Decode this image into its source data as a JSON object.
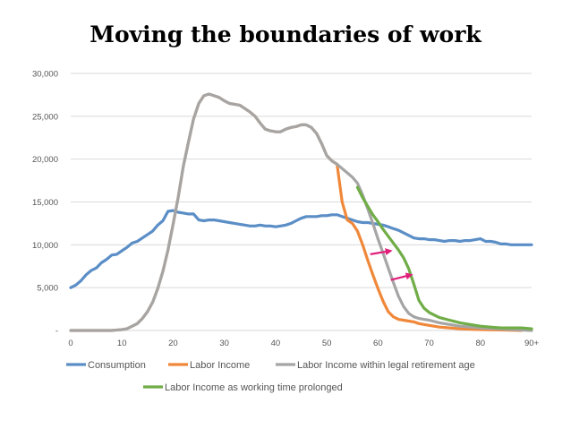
{
  "chart_data": {
    "type": "line",
    "title": "Moving the boundaries of work",
    "xlabel": "",
    "ylabel": "",
    "xlim": [
      0,
      90
    ],
    "ylim": [
      0,
      30000
    ],
    "x_ticks": [
      "0",
      "10",
      "20",
      "30",
      "40",
      "50",
      "60",
      "70",
      "80",
      "90+"
    ],
    "y_ticks": [
      "-",
      "5,000",
      "10,000",
      "15,000",
      "20,000",
      "25,000",
      "30,000"
    ],
    "grid": "horizontal",
    "legend_position": "bottom",
    "series": [
      {
        "name": "Consumption",
        "color": "#5b8ec6",
        "points": [
          [
            0,
            5000
          ],
          [
            1,
            5300
          ],
          [
            2,
            5800
          ],
          [
            3,
            6500
          ],
          [
            4,
            7000
          ],
          [
            5,
            7300
          ],
          [
            6,
            7900
          ],
          [
            7,
            8300
          ],
          [
            8,
            8800
          ],
          [
            9,
            8900
          ],
          [
            10,
            9300
          ],
          [
            11,
            9700
          ],
          [
            12,
            10200
          ],
          [
            13,
            10400
          ],
          [
            14,
            10800
          ],
          [
            15,
            11200
          ],
          [
            16,
            11600
          ],
          [
            17,
            12300
          ],
          [
            18,
            12800
          ],
          [
            19,
            13900
          ],
          [
            20,
            14000
          ],
          [
            21,
            13800
          ],
          [
            22,
            13700
          ],
          [
            23,
            13600
          ],
          [
            24,
            13600
          ],
          [
            25,
            12900
          ],
          [
            26,
            12800
          ],
          [
            27,
            12900
          ],
          [
            28,
            12900
          ],
          [
            29,
            12800
          ],
          [
            30,
            12700
          ],
          [
            31,
            12600
          ],
          [
            32,
            12500
          ],
          [
            33,
            12400
          ],
          [
            34,
            12300
          ],
          [
            35,
            12200
          ],
          [
            36,
            12200
          ],
          [
            37,
            12300
          ],
          [
            38,
            12200
          ],
          [
            39,
            12200
          ],
          [
            40,
            12100
          ],
          [
            41,
            12200
          ],
          [
            42,
            12300
          ],
          [
            43,
            12500
          ],
          [
            44,
            12800
          ],
          [
            45,
            13100
          ],
          [
            46,
            13300
          ],
          [
            47,
            13300
          ],
          [
            48,
            13300
          ],
          [
            49,
            13400
          ],
          [
            50,
            13400
          ],
          [
            51,
            13500
          ],
          [
            52,
            13500
          ],
          [
            53,
            13300
          ],
          [
            54,
            13100
          ],
          [
            55,
            12900
          ],
          [
            56,
            12700
          ],
          [
            57,
            12600
          ],
          [
            58,
            12600
          ],
          [
            59,
            12500
          ],
          [
            60,
            12400
          ],
          [
            61,
            12300
          ],
          [
            62,
            12100
          ],
          [
            63,
            11900
          ],
          [
            64,
            11700
          ],
          [
            65,
            11400
          ],
          [
            66,
            11100
          ],
          [
            67,
            10800
          ],
          [
            68,
            10700
          ],
          [
            69,
            10700
          ],
          [
            70,
            10600
          ],
          [
            71,
            10600
          ],
          [
            72,
            10500
          ],
          [
            73,
            10400
          ],
          [
            74,
            10500
          ],
          [
            75,
            10500
          ],
          [
            76,
            10400
          ],
          [
            77,
            10500
          ],
          [
            78,
            10500
          ],
          [
            79,
            10600
          ],
          [
            80,
            10700
          ],
          [
            81,
            10400
          ],
          [
            82,
            10400
          ],
          [
            83,
            10300
          ],
          [
            84,
            10100
          ],
          [
            85,
            10100
          ],
          [
            86,
            10000
          ],
          [
            87,
            10000
          ],
          [
            88,
            10000
          ],
          [
            89,
            10000
          ],
          [
            90,
            10000
          ]
        ]
      },
      {
        "name": "Labor Income",
        "color": "#f0883a",
        "points": [
          [
            0,
            0
          ],
          [
            5,
            0
          ],
          [
            8,
            0
          ],
          [
            10,
            100
          ],
          [
            11,
            200
          ],
          [
            12,
            500
          ],
          [
            13,
            800
          ],
          [
            14,
            1400
          ],
          [
            15,
            2200
          ],
          [
            16,
            3300
          ],
          [
            17,
            4900
          ],
          [
            18,
            6900
          ],
          [
            19,
            9400
          ],
          [
            20,
            12400
          ],
          [
            21,
            15600
          ],
          [
            22,
            19200
          ],
          [
            23,
            22000
          ],
          [
            24,
            24700
          ],
          [
            25,
            26500
          ],
          [
            26,
            27400
          ],
          [
            27,
            27600
          ],
          [
            28,
            27400
          ],
          [
            29,
            27200
          ],
          [
            30,
            26800
          ],
          [
            31,
            26500
          ],
          [
            32,
            26400
          ],
          [
            33,
            26300
          ],
          [
            34,
            25900
          ],
          [
            35,
            25500
          ],
          [
            36,
            25000
          ],
          [
            37,
            24200
          ],
          [
            38,
            23500
          ],
          [
            39,
            23300
          ],
          [
            40,
            23200
          ],
          [
            41,
            23200
          ],
          [
            42,
            23500
          ],
          [
            43,
            23700
          ],
          [
            44,
            23800
          ],
          [
            45,
            24000
          ],
          [
            46,
            24000
          ],
          [
            47,
            23700
          ],
          [
            48,
            23000
          ],
          [
            49,
            21800
          ],
          [
            50,
            20400
          ],
          [
            51,
            19800
          ],
          [
            52,
            19400
          ],
          [
            53,
            15000
          ],
          [
            54,
            12900
          ],
          [
            55,
            12500
          ],
          [
            56,
            11600
          ],
          [
            57,
            10000
          ],
          [
            58,
            8200
          ],
          [
            59,
            6500
          ],
          [
            60,
            4900
          ],
          [
            61,
            3400
          ],
          [
            62,
            2200
          ],
          [
            63,
            1600
          ],
          [
            64,
            1300
          ],
          [
            65,
            1200
          ],
          [
            66,
            1100
          ],
          [
            67,
            1000
          ],
          [
            68,
            800
          ],
          [
            69,
            700
          ],
          [
            70,
            600
          ],
          [
            72,
            400
          ],
          [
            74,
            300
          ],
          [
            76,
            200
          ],
          [
            80,
            100
          ],
          [
            85,
            50
          ],
          [
            88,
            0
          ]
        ]
      },
      {
        "name": "Labor Income within legal retirement age",
        "color": "#a5a5a5",
        "points": [
          [
            0,
            0
          ],
          [
            5,
            0
          ],
          [
            8,
            0
          ],
          [
            10,
            100
          ],
          [
            11,
            200
          ],
          [
            12,
            500
          ],
          [
            13,
            800
          ],
          [
            14,
            1400
          ],
          [
            15,
            2200
          ],
          [
            16,
            3300
          ],
          [
            17,
            4900
          ],
          [
            18,
            6900
          ],
          [
            19,
            9400
          ],
          [
            20,
            12400
          ],
          [
            21,
            15600
          ],
          [
            22,
            19200
          ],
          [
            23,
            22000
          ],
          [
            24,
            24700
          ],
          [
            25,
            26500
          ],
          [
            26,
            27400
          ],
          [
            27,
            27600
          ],
          [
            28,
            27400
          ],
          [
            29,
            27200
          ],
          [
            30,
            26800
          ],
          [
            31,
            26500
          ],
          [
            32,
            26400
          ],
          [
            33,
            26300
          ],
          [
            34,
            25900
          ],
          [
            35,
            25500
          ],
          [
            36,
            25000
          ],
          [
            37,
            24200
          ],
          [
            38,
            23500
          ],
          [
            39,
            23300
          ],
          [
            40,
            23200
          ],
          [
            41,
            23200
          ],
          [
            42,
            23500
          ],
          [
            43,
            23700
          ],
          [
            44,
            23800
          ],
          [
            45,
            24000
          ],
          [
            46,
            24000
          ],
          [
            47,
            23700
          ],
          [
            48,
            23000
          ],
          [
            49,
            21800
          ],
          [
            50,
            20400
          ],
          [
            51,
            19800
          ],
          [
            52,
            19400
          ],
          [
            53,
            18900
          ],
          [
            54,
            18400
          ],
          [
            55,
            17900
          ],
          [
            56,
            17200
          ],
          [
            57,
            15800
          ],
          [
            58,
            14200
          ],
          [
            59,
            12500
          ],
          [
            60,
            10700
          ],
          [
            61,
            9000
          ],
          [
            62,
            7300
          ],
          [
            63,
            5600
          ],
          [
            64,
            4000
          ],
          [
            65,
            2800
          ],
          [
            66,
            2000
          ],
          [
            67,
            1600
          ],
          [
            68,
            1400
          ],
          [
            69,
            1300
          ],
          [
            70,
            1200
          ],
          [
            72,
            900
          ],
          [
            74,
            700
          ],
          [
            76,
            500
          ],
          [
            80,
            300
          ],
          [
            85,
            150
          ],
          [
            88,
            50
          ],
          [
            90,
            0
          ]
        ]
      },
      {
        "name": "Labor Income as working time prolonged",
        "color": "#70ad47",
        "points": [
          [
            56,
            16700
          ],
          [
            57,
            15500
          ],
          [
            58,
            14500
          ],
          [
            59,
            13500
          ],
          [
            60,
            12700
          ],
          [
            61,
            11800
          ],
          [
            62,
            11000
          ],
          [
            63,
            10200
          ],
          [
            64,
            9400
          ],
          [
            65,
            8500
          ],
          [
            66,
            7200
          ],
          [
            67,
            5400
          ],
          [
            68,
            3500
          ],
          [
            69,
            2600
          ],
          [
            70,
            2100
          ],
          [
            71,
            1800
          ],
          [
            72,
            1500
          ],
          [
            74,
            1200
          ],
          [
            76,
            900
          ],
          [
            78,
            700
          ],
          [
            80,
            500
          ],
          [
            82,
            400
          ],
          [
            84,
            300
          ],
          [
            86,
            300
          ],
          [
            88,
            300
          ],
          [
            90,
            200
          ]
        ]
      }
    ],
    "annotations": [
      {
        "type": "arrow",
        "color": "#e0207a",
        "from": [
          58.5,
          8900
        ],
        "to": [
          62.5,
          9300
        ]
      },
      {
        "type": "arrow",
        "color": "#e0207a",
        "from": [
          62.5,
          5900
        ],
        "to": [
          66.5,
          6500
        ]
      }
    ]
  }
}
